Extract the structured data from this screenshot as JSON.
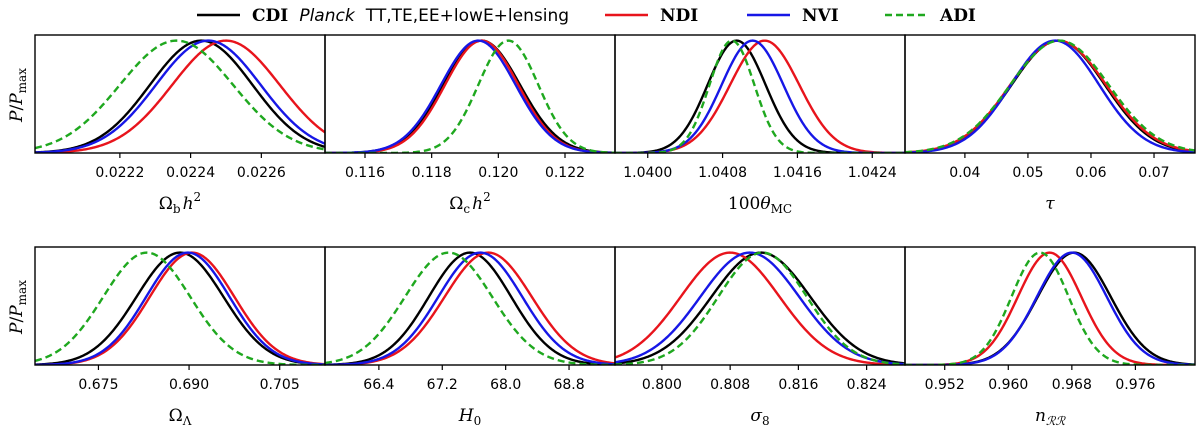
{
  "figure": {
    "ylabel": "P / P_max",
    "ylabel_parts": {
      "P": "P",
      "slash": "/",
      "Pmax_base": "P",
      "Pmax_sub": "max"
    }
  },
  "legend": {
    "entries": [
      {
        "key": "CDI",
        "name_bold": "CDI",
        "name_italic": "Planck",
        "name_rest": "TT,TE,EE+lowE+lensing",
        "color": "#000000",
        "dash": "solid"
      },
      {
        "key": "NDI",
        "name_bold": "NDI",
        "color": "#e8141c",
        "dash": "solid"
      },
      {
        "key": "NVI",
        "name_bold": "NVI",
        "color": "#1717e6",
        "dash": "solid"
      },
      {
        "key": "ADI",
        "name_bold": "ADI",
        "color": "#1fa81f",
        "dash": "dashed"
      }
    ]
  },
  "chart_data": [
    {
      "type": "line",
      "name": "omega_b_h2",
      "row": 0,
      "col": 0,
      "xlabel": "Ω_b h^2",
      "xlabel_parts": [
        "Ω",
        "b",
        "h",
        "2"
      ],
      "xlim": [
        0.02196,
        0.02278
      ],
      "ticks": [
        0.0222,
        0.0224,
        0.0226
      ],
      "tick_labels": [
        "0.0222",
        "0.0224",
        "0.0226"
      ],
      "ylim": [
        0,
        1.05
      ],
      "series": [
        {
          "name": "CDI",
          "mean": 0.02243,
          "sigma": 0.000145
        },
        {
          "name": "NDI",
          "mean": 0.0225,
          "sigma": 0.000152
        },
        {
          "name": "NVI",
          "mean": 0.02245,
          "sigma": 0.000148
        },
        {
          "name": "ADI",
          "mean": 0.02236,
          "sigma": 0.00016
        }
      ]
    },
    {
      "type": "line",
      "name": "omega_c_h2",
      "row": 0,
      "col": 1,
      "xlabel": "Ω_c h^2",
      "xlabel_parts": [
        "Ω",
        "c",
        "h",
        "2"
      ],
      "xlim": [
        0.1148,
        0.1235
      ],
      "ticks": [
        0.116,
        0.118,
        0.12,
        0.122
      ],
      "tick_labels": [
        "0.116",
        "0.118",
        "0.120",
        "0.122"
      ],
      "ylim": [
        0,
        1.05
      ],
      "series": [
        {
          "name": "CDI",
          "mean": 0.1195,
          "sigma": 0.00115
        },
        {
          "name": "NDI",
          "mean": 0.1195,
          "sigma": 0.0011
        },
        {
          "name": "NVI",
          "mean": 0.1194,
          "sigma": 0.00112
        },
        {
          "name": "ADI",
          "mean": 0.1203,
          "sigma": 0.0009
        }
      ]
    },
    {
      "type": "line",
      "name": "theta_MC",
      "row": 0,
      "col": 2,
      "xlabel": "100θ_MC",
      "xlabel_parts": [
        "100",
        "θ",
        "MC"
      ],
      "xlim": [
        1.03965,
        1.04275
      ],
      "ticks": [
        1.04,
        1.0408,
        1.0416,
        1.0424
      ],
      "tick_labels": [
        "1.0400",
        "1.0408",
        "1.0416",
        "1.0424"
      ],
      "ylim": [
        0,
        1.05
      ],
      "series": [
        {
          "name": "CDI",
          "mean": 1.04095,
          "sigma": 0.00031
        },
        {
          "name": "NDI",
          "mean": 1.04125,
          "sigma": 0.00037
        },
        {
          "name": "NVI",
          "mean": 1.04112,
          "sigma": 0.00033
        },
        {
          "name": "ADI",
          "mean": 1.0409,
          "sigma": 0.00024
        }
      ]
    },
    {
      "type": "line",
      "name": "tau",
      "row": 0,
      "col": 3,
      "xlabel": "τ",
      "xlabel_parts": [
        "τ"
      ],
      "xlim": [
        0.0305,
        0.0765
      ],
      "ticks": [
        0.04,
        0.05,
        0.06,
        0.07
      ],
      "tick_labels": [
        "0.04",
        "0.05",
        "0.06",
        "0.07"
      ],
      "ylim": [
        0,
        1.05
      ],
      "series": [
        {
          "name": "CDI",
          "mean": 0.0548,
          "sigma": 0.0074
        },
        {
          "name": "NDI",
          "mean": 0.0548,
          "sigma": 0.0076
        },
        {
          "name": "NVI",
          "mean": 0.0543,
          "sigma": 0.007
        },
        {
          "name": "ADI",
          "mean": 0.055,
          "sigma": 0.0078
        }
      ]
    },
    {
      "type": "line",
      "name": "omega_lambda",
      "row": 1,
      "col": 0,
      "xlabel": "Ω_Λ",
      "xlabel_parts": [
        "Ω",
        "Λ"
      ],
      "xlim": [
        0.6645,
        0.7125
      ],
      "ticks": [
        0.675,
        0.69,
        0.705
      ],
      "tick_labels": [
        "0.675",
        "0.690",
        "0.705"
      ],
      "ylim": [
        0,
        1.05
      ],
      "series": [
        {
          "name": "CDI",
          "mean": 0.6885,
          "sigma": 0.0072
        },
        {
          "name": "NDI",
          "mean": 0.6905,
          "sigma": 0.007
        },
        {
          "name": "NVI",
          "mean": 0.6898,
          "sigma": 0.0069
        },
        {
          "name": "ADI",
          "mean": 0.683,
          "sigma": 0.0072
        }
      ]
    },
    {
      "type": "line",
      "name": "H0",
      "row": 1,
      "col": 1,
      "xlabel": "H_0",
      "xlabel_parts": [
        "H",
        "0"
      ],
      "xlim": [
        65.72,
        69.38
      ],
      "ticks": [
        66.4,
        67.2,
        68.0,
        68.8
      ],
      "tick_labels": [
        "66.4",
        "67.2",
        "68.0",
        "68.8"
      ],
      "ylim": [
        0,
        1.05
      ],
      "series": [
        {
          "name": "CDI",
          "mean": 67.55,
          "sigma": 0.52
        },
        {
          "name": "NDI",
          "mean": 67.78,
          "sigma": 0.55
        },
        {
          "name": "NVI",
          "mean": 67.68,
          "sigma": 0.53
        },
        {
          "name": "ADI",
          "mean": 67.28,
          "sigma": 0.55
        }
      ]
    },
    {
      "type": "line",
      "name": "sigma8",
      "row": 1,
      "col": 2,
      "xlabel": "σ_8",
      "xlabel_parts": [
        "σ",
        "8"
      ],
      "xlim": [
        0.7945,
        0.8285
      ],
      "ticks": [
        0.8,
        0.808,
        0.816,
        0.824
      ],
      "tick_labels": [
        "0.800",
        "0.808",
        "0.816",
        "0.824"
      ],
      "ylim": [
        0,
        1.05
      ],
      "series": [
        {
          "name": "CDI",
          "mean": 0.8116,
          "sigma": 0.0058
        },
        {
          "name": "NDI",
          "mean": 0.808,
          "sigma": 0.0058
        },
        {
          "name": "NVI",
          "mean": 0.8103,
          "sigma": 0.0058
        },
        {
          "name": "ADI",
          "mean": 0.8118,
          "sigma": 0.0052
        }
      ]
    },
    {
      "type": "line",
      "name": "n_RR",
      "row": 1,
      "col": 3,
      "xlabel": "n_RR",
      "xlabel_parts": [
        "n",
        "ℛℛ"
      ],
      "xlim": [
        0.947,
        0.9835
      ],
      "ticks": [
        0.952,
        0.96,
        0.968,
        0.976
      ],
      "tick_labels": [
        "0.952",
        "0.960",
        "0.968",
        "0.976"
      ],
      "ylim": [
        0,
        1.05
      ],
      "series": [
        {
          "name": "CDI",
          "mean": 0.9683,
          "sigma": 0.0046
        },
        {
          "name": "NDI",
          "mean": 0.9652,
          "sigma": 0.004
        },
        {
          "name": "NVI",
          "mean": 0.968,
          "sigma": 0.0044
        },
        {
          "name": "ADI",
          "mean": 0.964,
          "sigma": 0.0036
        }
      ]
    }
  ]
}
